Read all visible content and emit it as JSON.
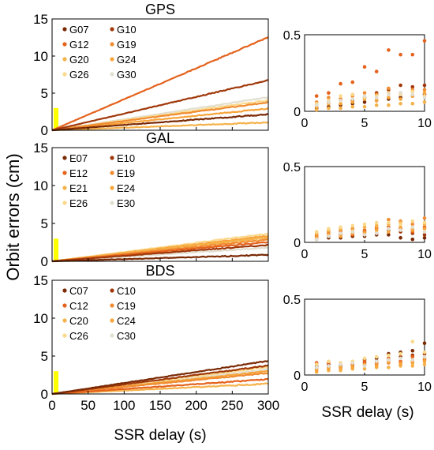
{
  "figure": {
    "ylabel": "Orbit errors (cm)",
    "xlabel_main": "SSR delay (s)",
    "xlabel_inset": "SSR delay (s)",
    "highlight_color": "#ffff00"
  },
  "chart_data": [
    {
      "type": "line",
      "title": "GPS",
      "xlabel": "SSR delay (s)",
      "ylabel": "Orbit errors (cm)",
      "xlim": [
        0,
        300
      ],
      "ylim": [
        0,
        15
      ],
      "xticks": [
        0,
        50,
        100,
        150,
        200,
        250,
        300
      ],
      "yticks": [
        0,
        5,
        10,
        15
      ],
      "legend_position": "top-left",
      "series": [
        {
          "name": "G07",
          "color": "#7a2a05",
          "slope": 0.0072
        },
        {
          "name": "G10",
          "color": "#a0380a",
          "slope": 0.0225
        },
        {
          "name": "G12",
          "color": "#e4621c",
          "slope": 0.0418
        },
        {
          "name": "G19",
          "color": "#f08c32",
          "slope": 0.0125
        },
        {
          "name": "G20",
          "color": "#f5b24a",
          "slope": 0.0035
        },
        {
          "name": "G24",
          "color": "#f7a43a",
          "slope": 0.0098
        },
        {
          "name": "G26",
          "color": "#fbd88a",
          "slope": 0.0135
        },
        {
          "name": "G30",
          "color": "#e2dfd0",
          "slope": 0.0148
        }
      ]
    },
    {
      "type": "line",
      "title": "GAL",
      "xlim": [
        0,
        300
      ],
      "ylim": [
        0,
        15
      ],
      "xticks": [
        0,
        50,
        100,
        150,
        200,
        250,
        300
      ],
      "yticks": [
        0,
        5,
        10,
        15
      ],
      "legend_position": "top-left",
      "series": [
        {
          "name": "E07",
          "color": "#7a2a05",
          "slope": 0.0028
        },
        {
          "name": "E10",
          "color": "#a0380a",
          "slope": 0.0072
        },
        {
          "name": "E12",
          "color": "#e4621c",
          "slope": 0.0085
        },
        {
          "name": "E19",
          "color": "#f08c32",
          "slope": 0.0095
        },
        {
          "name": "E21",
          "color": "#f5b24a",
          "slope": 0.0105
        },
        {
          "name": "E24",
          "color": "#f7a43a",
          "slope": 0.0112
        },
        {
          "name": "E26",
          "color": "#fbd88a",
          "slope": 0.0122
        },
        {
          "name": "E30",
          "color": "#e2dfd0",
          "slope": 0.006
        }
      ]
    },
    {
      "type": "line",
      "title": "BDS",
      "xlim": [
        0,
        300
      ],
      "ylim": [
        0,
        15
      ],
      "xticks": [
        0,
        50,
        100,
        150,
        200,
        250,
        300
      ],
      "yticks": [
        0,
        5,
        10,
        15
      ],
      "legend_position": "top-left",
      "series": [
        {
          "name": "C07",
          "color": "#7a2a05",
          "slope": 0.0145
        },
        {
          "name": "C10",
          "color": "#a0380a",
          "slope": 0.0125
        },
        {
          "name": "C12",
          "color": "#e4621c",
          "slope": 0.0065
        },
        {
          "name": "C19",
          "color": "#f08c32",
          "slope": 0.0092
        },
        {
          "name": "C20",
          "color": "#f5b24a",
          "slope": 0.0045
        },
        {
          "name": "C24",
          "color": "#f7a43a",
          "slope": 0.01
        },
        {
          "name": "C26",
          "color": "#fbd88a",
          "slope": 0.0118
        },
        {
          "name": "C30",
          "color": "#e2dfd0",
          "slope": 0.0108
        }
      ]
    },
    {
      "type": "scatter",
      "xlim": [
        0,
        10
      ],
      "ylim": [
        0,
        0.5
      ],
      "xticks": [
        0,
        5,
        10
      ],
      "yticks": [
        0,
        0.5
      ],
      "series": [
        {
          "name": "G12",
          "color": "#e4621c",
          "x": [
            1,
            2,
            3,
            4,
            5,
            6,
            7,
            8,
            9,
            10
          ],
          "y": [
            0.1,
            0.12,
            0.18,
            0.19,
            0.29,
            0.26,
            0.4,
            0.37,
            0.37,
            0.46
          ]
        },
        {
          "name": "G10",
          "color": "#a0380a",
          "x": [
            1,
            2,
            3,
            4,
            5,
            6,
            7,
            8,
            9,
            10
          ],
          "y": [
            0.04,
            0.06,
            0.08,
            0.07,
            0.09,
            0.12,
            0.14,
            0.17,
            0.16,
            0.17
          ]
        },
        {
          "name": "G07",
          "color": "#7a2a05",
          "x": [
            1,
            2,
            3,
            4,
            5,
            6,
            7,
            8,
            9,
            10
          ],
          "y": [
            0.02,
            0.03,
            0.04,
            0.05,
            0.06,
            0.07,
            0.08,
            0.09,
            0.1,
            0.11
          ]
        },
        {
          "name": "G19",
          "color": "#f08c32",
          "x": [
            1,
            2,
            3,
            4,
            5,
            6,
            7,
            8,
            9,
            10
          ],
          "y": [
            0.06,
            0.09,
            0.08,
            0.1,
            0.12,
            0.11,
            0.15,
            0.12,
            0.14,
            0.14
          ]
        },
        {
          "name": "G24",
          "color": "#f7a43a",
          "x": [
            1,
            2,
            3,
            4,
            5,
            6,
            7,
            8,
            9,
            10
          ],
          "y": [
            0.03,
            0.05,
            0.05,
            0.06,
            0.08,
            0.07,
            0.09,
            0.08,
            0.1,
            0.12
          ]
        },
        {
          "name": "G26",
          "color": "#fbd88a",
          "x": [
            1,
            2,
            3,
            4,
            5,
            6,
            7,
            8,
            9,
            10
          ],
          "y": [
            0.05,
            0.07,
            0.1,
            0.11,
            0.09,
            0.1,
            0.12,
            0.11,
            0.13,
            0.1
          ]
        },
        {
          "name": "G30",
          "color": "#e2dfd0",
          "x": [
            1,
            2,
            3,
            4,
            5,
            6,
            7,
            8,
            9,
            10
          ],
          "y": [
            0.04,
            0.06,
            0.07,
            0.08,
            0.1,
            0.09,
            0.11,
            0.12,
            0.11,
            0.09
          ]
        },
        {
          "name": "G20",
          "color": "#f5b24a",
          "x": [
            1,
            2,
            3,
            4,
            5,
            6,
            7,
            8,
            9,
            10
          ],
          "y": [
            0.01,
            0.02,
            0.02,
            0.03,
            0.03,
            0.04,
            0.04,
            0.05,
            0.05,
            0.06
          ]
        }
      ]
    },
    {
      "type": "scatter",
      "xlim": [
        0,
        10
      ],
      "ylim": [
        0,
        0.5
      ],
      "xticks": [
        0,
        5,
        10
      ],
      "yticks": [
        0,
        0.5
      ],
      "series": [
        {
          "name": "E07",
          "color": "#7a2a05",
          "x": [
            1,
            2,
            3,
            4,
            5,
            6,
            7,
            8,
            9,
            10
          ],
          "y": [
            0.02,
            0.03,
            0.03,
            0.04,
            0.04,
            0.05,
            0.05,
            0.03,
            0.02,
            0.03
          ]
        },
        {
          "name": "E10",
          "color": "#a0380a",
          "x": [
            1,
            2,
            3,
            4,
            5,
            6,
            7,
            8,
            9,
            10
          ],
          "y": [
            0.03,
            0.04,
            0.05,
            0.06,
            0.07,
            0.06,
            0.08,
            0.07,
            0.06,
            0.05
          ]
        },
        {
          "name": "E12",
          "color": "#e4621c",
          "x": [
            1,
            2,
            3,
            4,
            5,
            6,
            7,
            8,
            9,
            10
          ],
          "y": [
            0.04,
            0.06,
            0.07,
            0.05,
            0.08,
            0.09,
            0.1,
            0.09,
            0.07,
            0.1
          ]
        },
        {
          "name": "E19",
          "color": "#f08c32",
          "x": [
            1,
            2,
            3,
            4,
            5,
            6,
            7,
            8,
            9,
            10
          ],
          "y": [
            0.05,
            0.07,
            0.08,
            0.09,
            0.07,
            0.1,
            0.15,
            0.14,
            0.12,
            0.16
          ]
        },
        {
          "name": "E21",
          "color": "#f5b24a",
          "x": [
            1,
            2,
            3,
            4,
            5,
            6,
            7,
            8,
            9,
            10
          ],
          "y": [
            0.06,
            0.08,
            0.09,
            0.08,
            0.1,
            0.11,
            0.12,
            0.13,
            0.09,
            0.12
          ]
        },
        {
          "name": "E24",
          "color": "#f7a43a",
          "x": [
            1,
            2,
            3,
            4,
            5,
            6,
            7,
            8,
            9,
            10
          ],
          "y": [
            0.03,
            0.05,
            0.04,
            0.06,
            0.06,
            0.08,
            0.07,
            0.1,
            0.08,
            0.09
          ]
        },
        {
          "name": "E26",
          "color": "#fbd88a",
          "x": [
            1,
            2,
            3,
            4,
            5,
            6,
            7,
            8,
            9,
            10
          ],
          "y": [
            0.07,
            0.09,
            0.1,
            0.11,
            0.12,
            0.13,
            0.13,
            0.12,
            0.14,
            0.13
          ]
        },
        {
          "name": "E30",
          "color": "#e2dfd0",
          "x": [
            1,
            2,
            3,
            4,
            5,
            6,
            7,
            8,
            9,
            10
          ],
          "y": [
            0.02,
            0.04,
            0.06,
            0.07,
            0.05,
            0.06,
            0.09,
            0.08,
            0.1,
            0.07
          ]
        }
      ]
    },
    {
      "type": "scatter",
      "xlim": [
        0,
        10
      ],
      "ylim": [
        0,
        0.5
      ],
      "xticks": [
        0,
        5,
        10
      ],
      "yticks": [
        0,
        0.5
      ],
      "xlabel": "SSR delay (s)",
      "series": [
        {
          "name": "C07",
          "color": "#7a2a05",
          "x": [
            1,
            2,
            3,
            4,
            5,
            6,
            7,
            8,
            9,
            10
          ],
          "y": [
            0.06,
            0.07,
            0.06,
            0.08,
            0.1,
            0.11,
            0.14,
            0.15,
            0.16,
            0.21
          ]
        },
        {
          "name": "C10",
          "color": "#a0380a",
          "x": [
            1,
            2,
            3,
            4,
            5,
            6,
            7,
            8,
            9,
            10
          ],
          "y": [
            0.05,
            0.06,
            0.05,
            0.07,
            0.08,
            0.09,
            0.1,
            0.12,
            0.13,
            0.14
          ]
        },
        {
          "name": "C12",
          "color": "#e4621c",
          "x": [
            1,
            2,
            3,
            4,
            5,
            6,
            7,
            8,
            9,
            10
          ],
          "y": [
            0.08,
            0.08,
            0.07,
            0.07,
            0.09,
            0.08,
            0.11,
            0.09,
            0.12,
            0.1
          ]
        },
        {
          "name": "C19",
          "color": "#f08c32",
          "x": [
            1,
            2,
            3,
            4,
            5,
            6,
            7,
            8,
            9,
            10
          ],
          "y": [
            0.04,
            0.05,
            0.04,
            0.06,
            0.06,
            0.07,
            0.08,
            0.08,
            0.09,
            0.11
          ]
        },
        {
          "name": "C20",
          "color": "#f5b24a",
          "x": [
            1,
            2,
            3,
            4,
            5,
            6,
            7,
            8,
            9,
            10
          ],
          "y": [
            0.02,
            0.03,
            0.03,
            0.04,
            0.04,
            0.05,
            0.05,
            0.06,
            0.06,
            0.07
          ]
        },
        {
          "name": "C24",
          "color": "#f7a43a",
          "x": [
            1,
            2,
            3,
            4,
            5,
            6,
            7,
            8,
            9,
            10
          ],
          "y": [
            0.03,
            0.04,
            0.05,
            0.05,
            0.07,
            0.06,
            0.09,
            0.07,
            0.08,
            0.09
          ]
        },
        {
          "name": "C26",
          "color": "#fbd88a",
          "x": [
            1,
            2,
            3,
            4,
            5,
            6,
            7,
            8,
            9,
            10
          ],
          "y": [
            0.07,
            0.09,
            0.08,
            0.09,
            0.11,
            0.12,
            0.13,
            0.14,
            0.22,
            0.15
          ]
        },
        {
          "name": "C30",
          "color": "#e2dfd0",
          "x": [
            1,
            2,
            3,
            4,
            5,
            6,
            7,
            8,
            9,
            10
          ],
          "y": [
            0.05,
            0.06,
            0.07,
            0.08,
            0.06,
            0.09,
            0.1,
            0.11,
            0.1,
            0.12
          ]
        }
      ]
    }
  ]
}
